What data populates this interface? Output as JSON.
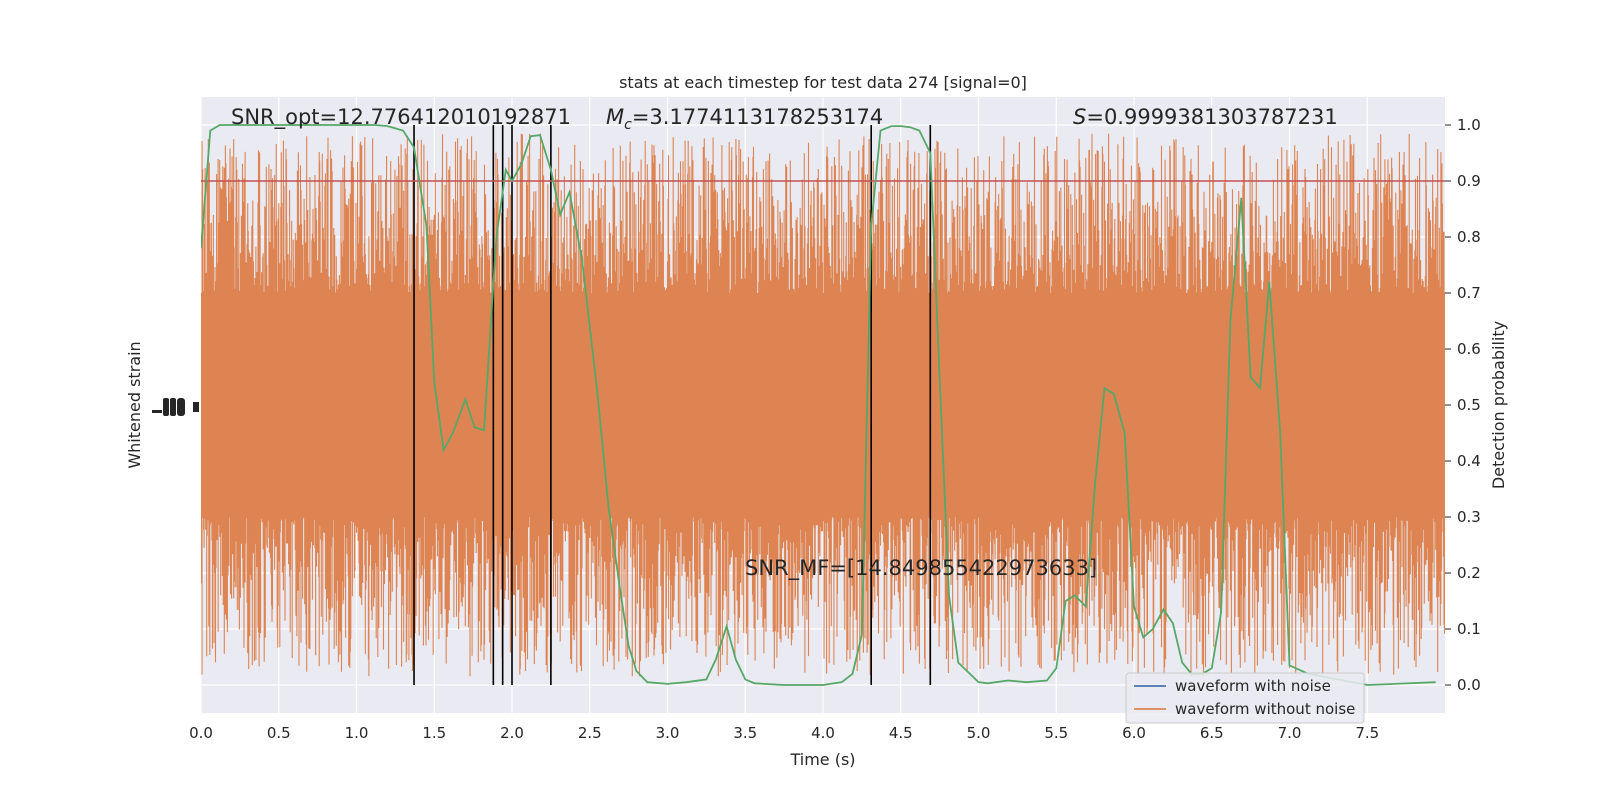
{
  "chart_data": {
    "type": "line",
    "title": "stats at each timestep for test data 274 [signal=0]",
    "xlabel": "Time (s)",
    "ylabel_left": "Whitened strain",
    "ylabel_right": "Detection probability",
    "xlim": [
      0.0,
      8.0
    ],
    "ylim_right": [
      -0.05,
      1.05
    ],
    "xticks": [
      "0.0",
      "0.5",
      "1.0",
      "1.5",
      "2.0",
      "2.5",
      "3.0",
      "3.5",
      "4.0",
      "4.5",
      "5.0",
      "5.5",
      "6.0",
      "6.5",
      "7.0",
      "7.5"
    ],
    "yticks_right": [
      "0.0",
      "0.1",
      "0.2",
      "0.3",
      "0.4",
      "0.5",
      "0.6",
      "0.7",
      "0.8",
      "0.9",
      "1.0"
    ],
    "grid": true,
    "legend_placement": "lower-right",
    "annotations": {
      "snr_opt": "SNR_opt=12.776412010192871",
      "mc_symbol": "M",
      "mc_sub": "c",
      "mc_value": "=3.1774113178253174",
      "s_symbol": "S",
      "s_value": "=0.9999381303787231",
      "snr_mf": "SNR_MF=[14.849855422973633]"
    },
    "threshold": 0.9,
    "vertical_lines_x": [
      1.37,
      1.88,
      1.94,
      2.0,
      2.25,
      4.31,
      4.69
    ],
    "series": [
      {
        "name": "waveform with noise",
        "color": "#4c72b0",
        "values": []
      },
      {
        "name": "waveform without noise",
        "color": "#dd8452",
        "band_center_prob": 0.5,
        "band_halfwidth_prob": 0.2,
        "spike_range_prob": [
          0.0,
          1.0
        ]
      },
      {
        "name": "",
        "color": "#55a868",
        "x": [
          0.0,
          0.06,
          0.12,
          0.25,
          0.5,
          0.75,
          1.0,
          1.12,
          1.2,
          1.3,
          1.37,
          1.45,
          1.5,
          1.56,
          1.62,
          1.7,
          1.76,
          1.82,
          1.9,
          1.96,
          2.0,
          2.06,
          2.12,
          2.18,
          2.25,
          2.31,
          2.37,
          2.45,
          2.55,
          2.62,
          2.69,
          2.75,
          2.8,
          2.87,
          3.0,
          3.12,
          3.25,
          3.31,
          3.38,
          3.44,
          3.5,
          3.56,
          3.75,
          4.0,
          4.12,
          4.19,
          4.25,
          4.31,
          4.37,
          4.44,
          4.5,
          4.56,
          4.62,
          4.69,
          4.75,
          4.81,
          4.87,
          5.0,
          5.06,
          5.19,
          5.31,
          5.44,
          5.5,
          5.56,
          5.62,
          5.69,
          5.75,
          5.81,
          5.87,
          5.94,
          6.0,
          6.06,
          6.12,
          6.19,
          6.25,
          6.31,
          6.37,
          6.44,
          6.5,
          6.56,
          6.62,
          6.69,
          6.75,
          6.81,
          6.87,
          6.94,
          7.0,
          7.12,
          7.5,
          7.94
        ],
        "values": [
          0.78,
          0.99,
          1.0,
          1.0,
          1.0,
          1.0,
          1.0,
          1.0,
          0.998,
          0.99,
          0.96,
          0.82,
          0.54,
          0.42,
          0.45,
          0.51,
          0.46,
          0.455,
          0.8,
          0.92,
          0.9,
          0.93,
          0.98,
          0.982,
          0.92,
          0.84,
          0.88,
          0.76,
          0.52,
          0.32,
          0.18,
          0.07,
          0.025,
          0.005,
          0.002,
          0.005,
          0.01,
          0.045,
          0.105,
          0.045,
          0.01,
          0.003,
          0.0,
          0.0,
          0.005,
          0.02,
          0.09,
          0.82,
          0.99,
          0.998,
          0.998,
          0.996,
          0.99,
          0.95,
          0.55,
          0.16,
          0.04,
          0.005,
          0.003,
          0.008,
          0.005,
          0.008,
          0.03,
          0.15,
          0.16,
          0.14,
          0.36,
          0.53,
          0.52,
          0.45,
          0.14,
          0.085,
          0.1,
          0.135,
          0.11,
          0.04,
          0.02,
          0.02,
          0.03,
          0.13,
          0.65,
          0.87,
          0.55,
          0.53,
          0.72,
          0.45,
          0.035,
          0.02,
          0.0,
          0.005
        ]
      }
    ]
  }
}
